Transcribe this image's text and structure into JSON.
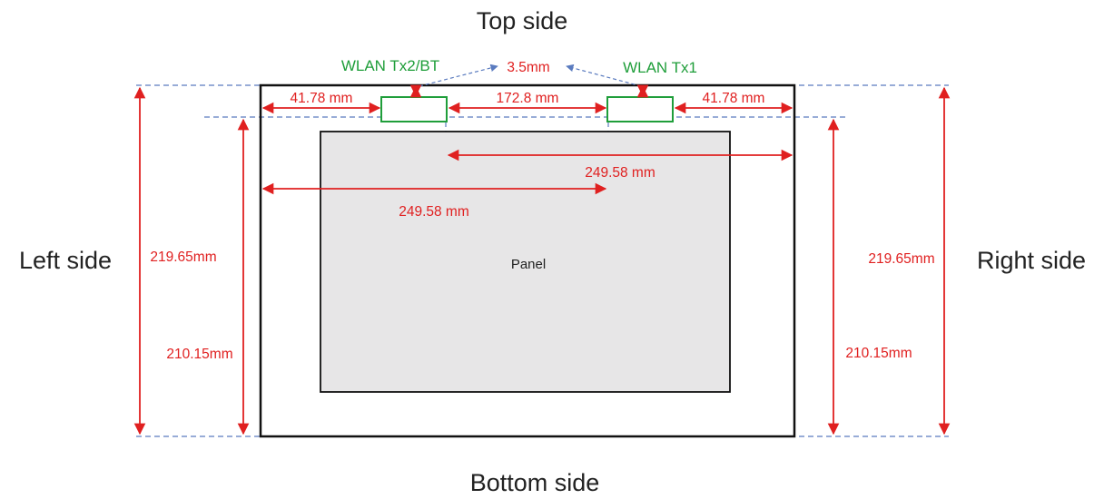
{
  "sides": {
    "top": "Top side",
    "bottom": "Bottom side",
    "left": "Left side",
    "right": "Right side"
  },
  "panel": {
    "label": "Panel"
  },
  "antennas": {
    "left": "WLAN Tx2/BT",
    "right": "WLAN Tx1"
  },
  "dimensions": {
    "antenna_gap": "3.5mm",
    "left_offset": "41.78 mm",
    "antenna_spacing": "172.8 mm",
    "right_offset": "41.78 mm",
    "ant1_to_right": "249.58 mm",
    "left_to_ant1": "249.58 mm",
    "height_left": "219.65mm",
    "height_right": "219.65mm",
    "inner_height_left": "210.15mm",
    "inner_height_right": "210.15mm"
  },
  "colors": {
    "dimension": "#e02020",
    "antenna": "#1f9e3a",
    "guide": "#5a7bbf",
    "panel_fill": "#e7e6e7",
    "frame": "#111111"
  }
}
